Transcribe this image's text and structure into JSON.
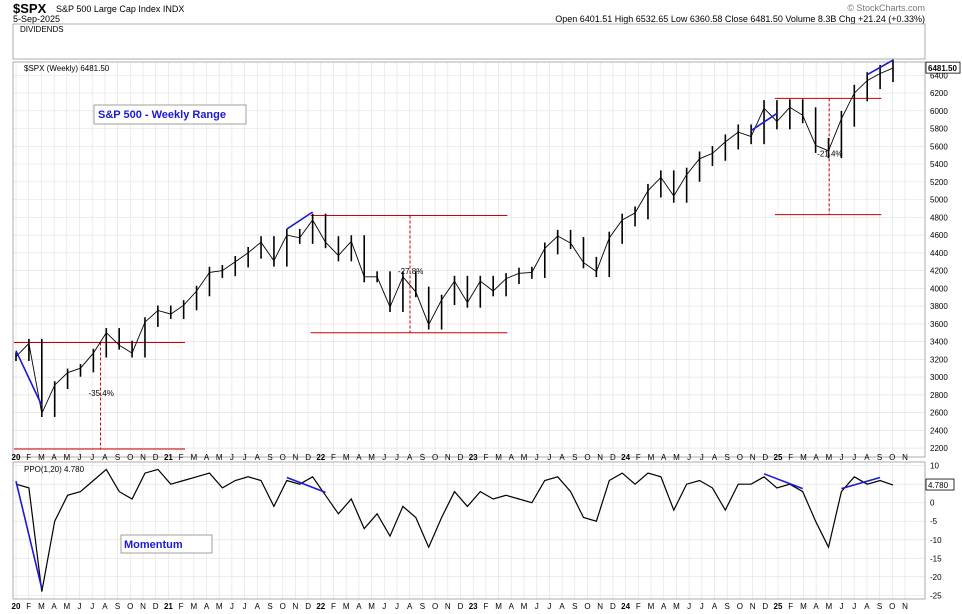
{
  "header": {
    "symbol": "$SPX",
    "name": "S&P 500 Large Cap Index INDX",
    "date": "5-Sep-2025",
    "ohlc": "Open 6401.51  High 6532.65  Low 6360.58  Close 6481.50  Volume 8.3B  Chg +21.24 (+0.33%)",
    "watermark": "© StockCharts.com"
  },
  "legend": {
    "dividends": "DIVIDENDS",
    "price": "$SPX (Weekly) 6481.50",
    "ppo": "PPO(1,20) 4.780"
  },
  "boxes": {
    "weekly_range": "S&P 500 - Weekly Range",
    "momentum": "Momentum"
  },
  "colors": {
    "price": "#000000",
    "trend": "#1a1ad4",
    "level": "#cc0000",
    "box_text": "#1a1ad4",
    "grid": "#e4e4e4"
  },
  "chart_data": [
    {
      "type": "line",
      "title": "$SPX (Weekly) 6481.50",
      "y_ticks": [
        2200,
        2400,
        2600,
        2800,
        3000,
        3200,
        3400,
        3600,
        3800,
        4000,
        4200,
        4400,
        4600,
        4800,
        5000,
        5200,
        5400,
        5600,
        5800,
        6000,
        6200,
        6400
      ],
      "last_value_label": "6481.50",
      "x_tick_labels": [
        "20",
        "F",
        "M",
        "A",
        "M",
        "J",
        "J",
        "A",
        "S",
        "O",
        "N",
        "D",
        "21",
        "F",
        "M",
        "A",
        "M",
        "J",
        "J",
        "A",
        "S",
        "O",
        "N",
        "D",
        "22",
        "F",
        "M",
        "A",
        "M",
        "J",
        "J",
        "A",
        "S",
        "O",
        "N",
        "D",
        "23",
        "F",
        "M",
        "A",
        "M",
        "J",
        "J",
        "A",
        "S",
        "O",
        "N",
        "D",
        "24",
        "F",
        "M",
        "A",
        "M",
        "J",
        "J",
        "A",
        "S",
        "O",
        "N",
        "D",
        "25",
        "F",
        "M",
        "A",
        "M",
        "J",
        "J",
        "A",
        "S",
        "O",
        "N"
      ],
      "ylim": [
        2100,
        6550
      ],
      "grid": true,
      "series": [
        {
          "x": [
            "2020-01",
            "2020-02",
            "2020-03",
            "2020-04",
            "2020-05",
            "2020-06",
            "2020-07",
            "2020-08",
            "2020-09",
            "2020-10",
            "2020-11",
            "2020-12",
            "2021-01",
            "2021-02",
            "2021-03",
            "2021-04",
            "2021-05",
            "2021-06",
            "2021-07",
            "2021-08",
            "2021-09",
            "2021-10",
            "2021-11",
            "2021-12",
            "2022-01",
            "2022-02",
            "2022-03",
            "2022-04",
            "2022-05",
            "2022-06",
            "2022-07",
            "2022-08",
            "2022-09",
            "2022-10",
            "2022-11",
            "2022-12",
            "2023-01",
            "2023-02",
            "2023-03",
            "2023-04",
            "2023-05",
            "2023-06",
            "2023-07",
            "2023-08",
            "2023-09",
            "2023-10",
            "2023-11",
            "2023-12",
            "2024-01",
            "2024-02",
            "2024-03",
            "2024-04",
            "2024-05",
            "2024-06",
            "2024-07",
            "2024-08",
            "2024-09",
            "2024-10",
            "2024-11",
            "2024-12",
            "2025-01",
            "2025-02",
            "2025-03",
            "2025-04",
            "2025-05",
            "2025-06",
            "2025-07",
            "2025-08",
            "2025-09"
          ],
          "values": [
            3230,
            3380,
            2590,
            2910,
            3050,
            3100,
            3270,
            3500,
            3360,
            3270,
            3620,
            3750,
            3710,
            3810,
            3970,
            4180,
            4200,
            4300,
            4400,
            4520,
            4310,
            4600,
            4570,
            4770,
            4520,
            4370,
            4530,
            4130,
            4130,
            3790,
            4130,
            3960,
            3590,
            3870,
            4080,
            3840,
            4080,
            3970,
            4110,
            4170,
            4180,
            4450,
            4590,
            4510,
            4290,
            4190,
            4570,
            4770,
            4850,
            5100,
            5250,
            5040,
            5280,
            5460,
            5520,
            5650,
            5760,
            5710,
            6030,
            5880,
            6040,
            5950,
            5610,
            5550,
            5910,
            6200,
            6340,
            6420,
            6481
          ]
        }
      ],
      "annotations": [
        {
          "text": "-35.4%",
          "high": 3390,
          "low": 2190
        },
        {
          "text": "-27.8%",
          "high": 4820,
          "low": 3500
        },
        {
          "text": "-21.4%",
          "high": 6140,
          "low": 4830
        }
      ]
    },
    {
      "type": "line",
      "title": "PPO(1,20) 4.780",
      "y_ticks": [
        -25,
        -20,
        -15,
        -10,
        -5,
        0,
        5,
        10
      ],
      "last_value_label": "4.780",
      "ylim": [
        -26,
        11
      ],
      "grid": true,
      "series": [
        {
          "x": [
            "2020-01",
            "2020-02",
            "2020-03",
            "2020-04",
            "2020-05",
            "2020-06",
            "2020-07",
            "2020-08",
            "2020-09",
            "2020-10",
            "2020-11",
            "2020-12",
            "2021-01",
            "2021-02",
            "2021-03",
            "2021-04",
            "2021-05",
            "2021-06",
            "2021-07",
            "2021-08",
            "2021-09",
            "2021-10",
            "2021-11",
            "2021-12",
            "2022-01",
            "2022-02",
            "2022-03",
            "2022-04",
            "2022-05",
            "2022-06",
            "2022-07",
            "2022-08",
            "2022-09",
            "2022-10",
            "2022-11",
            "2022-12",
            "2023-01",
            "2023-02",
            "2023-03",
            "2023-04",
            "2023-05",
            "2023-06",
            "2023-07",
            "2023-08",
            "2023-09",
            "2023-10",
            "2023-11",
            "2023-12",
            "2024-01",
            "2024-02",
            "2024-03",
            "2024-04",
            "2024-05",
            "2024-06",
            "2024-07",
            "2024-08",
            "2024-09",
            "2024-10",
            "2024-11",
            "2024-12",
            "2025-01",
            "2025-02",
            "2025-03",
            "2025-04",
            "2025-05",
            "2025-06",
            "2025-07",
            "2025-08",
            "2025-09"
          ],
          "values": [
            5,
            4,
            -24,
            -5,
            2,
            3,
            6,
            9,
            3,
            1,
            8,
            9,
            5,
            6,
            7,
            8,
            4,
            6,
            7,
            6,
            -1,
            6,
            5,
            7,
            2,
            -3,
            1,
            -7,
            -3,
            -9,
            -1,
            -4,
            -12,
            -4,
            3,
            -1,
            3,
            1,
            2,
            1,
            0,
            6,
            7,
            3,
            -4,
            -5,
            6,
            8,
            5,
            8,
            7,
            -2,
            5,
            6,
            4,
            -2,
            5,
            5,
            7,
            4,
            5,
            3,
            -5,
            -12,
            3,
            7,
            5,
            6,
            4.78
          ]
        }
      ]
    }
  ]
}
